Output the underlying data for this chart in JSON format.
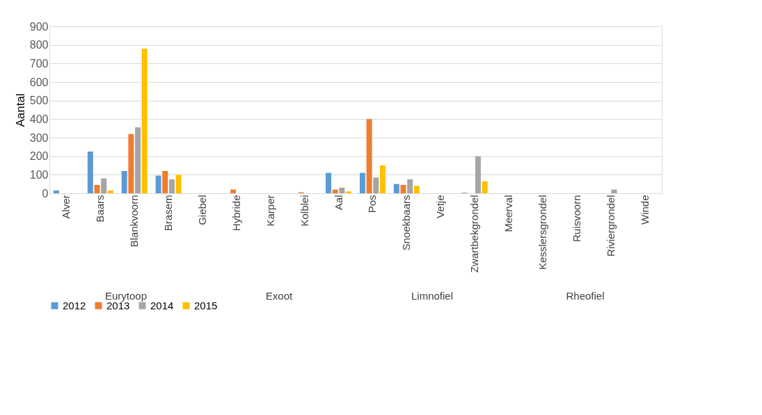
{
  "chart_data": {
    "type": "bar",
    "ylabel": "Aantal",
    "categories": [
      "Alver",
      "Baars",
      "Blankvoorn",
      "Brasem",
      "Giebel",
      "Hybride",
      "Karper",
      "Kolblei",
      "Aal",
      "Pos",
      "Snoekbaars",
      "Vetje",
      "Zwartbekgrondel",
      "Meerval",
      "Kesslersgrondel",
      "Ruisvoorn",
      "Riviergrondel",
      "Winde"
    ],
    "series": [
      {
        "name": "2012",
        "color": "#5b9bd5",
        "values": [
          15,
          225,
          120,
          95,
          null,
          null,
          null,
          null,
          110,
          110,
          50,
          null,
          3,
          null,
          null,
          null,
          null,
          null
        ]
      },
      {
        "name": "2013",
        "color": "#ed7d31",
        "values": [
          null,
          45,
          320,
          120,
          null,
          20,
          null,
          5,
          20,
          400,
          45,
          null,
          null,
          null,
          null,
          null,
          null,
          null
        ]
      },
      {
        "name": "2014",
        "color": "#a5a5a5",
        "values": [
          null,
          80,
          355,
          75,
          null,
          null,
          null,
          null,
          30,
          85,
          75,
          null,
          200,
          null,
          null,
          null,
          20,
          null
        ]
      },
      {
        "name": "2015",
        "color": "#ffc000",
        "values": [
          null,
          15,
          780,
          100,
          null,
          null,
          null,
          null,
          10,
          150,
          40,
          null,
          65,
          null,
          null,
          null,
          null,
          null
        ]
      }
    ],
    "ylim": [
      0,
      900
    ],
    "yticks": [
      0,
      100,
      200,
      300,
      400,
      500,
      600,
      700,
      800,
      900
    ],
    "grid": "y",
    "legend": "bottom",
    "annotations": [
      "Eurytoop",
      "Exoot",
      "Limnofiel",
      "Rheofiel"
    ]
  }
}
